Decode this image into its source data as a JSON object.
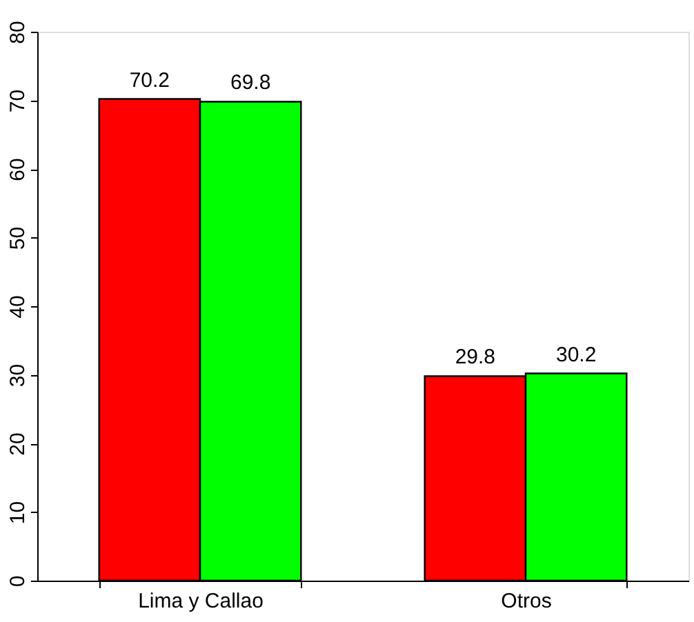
{
  "chart_data": {
    "type": "bar",
    "categories": [
      "Lima y Callao",
      "Otros"
    ],
    "series": [
      {
        "color": "#ff0000",
        "values": [
          70.2,
          29.8
        ]
      },
      {
        "color": "#00ff00",
        "values": [
          69.8,
          30.2
        ]
      }
    ],
    "ylim": [
      0,
      80
    ],
    "yticks": [
      0,
      10,
      20,
      30,
      40,
      50,
      60,
      70,
      80
    ],
    "data_labels": true,
    "grid": false,
    "legend": false
  }
}
